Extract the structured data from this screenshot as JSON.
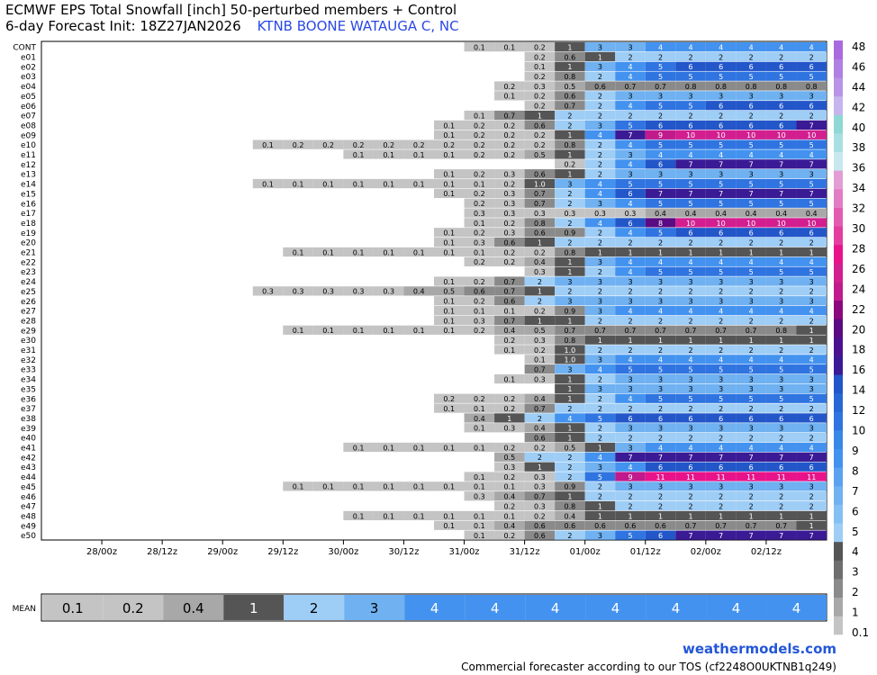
{
  "chart_data": {
    "type": "heatmap",
    "title": "ECMWF EPS Total Snowfall [inch]  50-perturbed members + Control",
    "subtitle": "6-day Forecast Init: 18Z27JAN2026",
    "location": "KTNB BOONE WATAUGA C, NC",
    "x_tick_labels": [
      "28/00z",
      "28/12z",
      "29/00z",
      "29/12z",
      "30/00z",
      "30/12z",
      "31/00z",
      "31/12z",
      "01/00z",
      "01/12z",
      "02/00z",
      "02/12z"
    ],
    "members": [
      "CONT",
      "e01",
      "e02",
      "e03",
      "e04",
      "e05",
      "e06",
      "e07",
      "e08",
      "e09",
      "e10",
      "e11",
      "e12",
      "e13",
      "e14",
      "e15",
      "e16",
      "e17",
      "e18",
      "e19",
      "e20",
      "e21",
      "e22",
      "e23",
      "e24",
      "e25",
      "e26",
      "e27",
      "e28",
      "e29",
      "e30",
      "e31",
      "e32",
      "e33",
      "e34",
      "e35",
      "e36",
      "e37",
      "e38",
      "e39",
      "e40",
      "e41",
      "e42",
      "e43",
      "e44",
      "e45",
      "e46",
      "e47",
      "e48",
      "e49",
      "e50"
    ],
    "members_values": [
      "------------------,------------------,0.1,0.1,0.2,1,3,3,4,4,4,4,4,4",
      "------------------,------------------,----,----,0.2,0.6,1,2,2,2,2,2,2,2",
      ",,,,,,,,,,,,,0.1,1,3,4,5,6,6,6,6,6",
      ",,,,,,,,,,,,,0.2,0.8,2,4,5,5,5,5,5,5",
      ",,,,,,,,,,,,0.2,0.3,0.5,0.6,0.7,0.7,0.8,0.8,0.8,0.8,0.8",
      ",,,,,,,,,,,,0.1,0.2,0.6,2,3,3,3,3,3,3,3",
      ",,,,,,,,,,,,,0.2,0.7,2,4,5,5,6,6,6,6",
      ",,,,,,,,,,,0.1,0.7,1,2,2,2,2,2,2,2,2,2",
      ",,,,,,,,,,0.1,0.2,0.2,0.6,2,3,5,6,6,6,6,6,7",
      ",,,,,,,,,,0.1,0.2,0.2,0.2,1,4,7,9,10,10,10,10,10",
      ",,,,0.1,0.2,0.2,0.2,0.2,0.2,0.2,0.2,0.2,0.2,0.8,2,4,5,5,5,5,5,5",
      ",,,,,,,0.1,0.1,0.1,0.1,0.2,0.2,0.5,1,2,3,4,4,4,4,4,4",
      ",,,,,,,,,,,,,,0.2,2,4,6,7,7,7,7,7",
      ",,,,,,,,,,0.1,0.2,0.3,0.6,1,2,3,3,3,3,3,3,3",
      ",,,,0.1,0.1,0.1,0.1,0.1,0.1,0.1,0.1,0.2,1.0,3,4,5,5,5,5,5,5,5",
      ",,,,,,,,,,,,0.1,0.2,0.3,0.7,2,4,6,7,7,7,7,7,7",
      ",,,,,,,,,,,,0.2,0.3,0.7,2,3,4,5,5,5,5,5,5",
      ",,,,,,,,,,,,0.3,0.3,0.3,0.3,0.3,0.3,0.4,0.4,0.4,0.4,0.4,0.4",
      ",,,,,,,,,,,,0.1,0.2,0.8,2,4,6,8,10,10,10,10,10",
      ",,,,,,,,,,0.1,0.2,0.3,0.6,0.9,2,4,5,6,6,6,6,6",
      ",,,,,,,,,,0.1,0.3,0.6,1,2,2,2,2,2,2,2,2,2",
      ",,,,0.1,0.1,0.1,0.1,0.1,0.1,0.1,0.2,0.2,0.8,1,1,1,1,1,1,1,1",
      ",,,,,,,,,,,0.2,0.2,0.4,1,3,4,4,4,4,4,4,4",
      ",,,,,,,,,,,,,0.3,1,2,4,5,5,5,5,5,5",
      ",,,,,,,,,,0.1,0.2,0.7,2,3,3,3,3,3,3,3,3,3",
      ",,,0.3,0.3,0.3,0.3,0.3,0.4,0.5,0.6,0.7,1,2,2,2,2,2,2,2,2,2",
      ",,,,,,,,,,0.1,0.2,0.6,2,3,3,3,3,3,3,3,3,3",
      ",,,,,,,,,0.1,0.1,0.1,0.2,0.9,3,4,4,4,4,4,4,4",
      ",,,,,,,,,,0.1,0.3,0.7,1,1,2,2,2,2,2,2,2,2",
      ",,,,0.1,0.1,0.1,0.1,0.1,0.1,0.2,0.4,0.5,0.7,0.7,0.7,0.7,0.7,0.7,0.7,0.8,1",
      ",,,,,,,,,,,0.2,0.3,0.8,1,1,1,1,1,1,1,1",
      ",,,,,,,,,,,0.1,0.2,1.0,2,2,2,2,2,2,2,2",
      ",,,,,,,,,,,,0.1,1.0,3,4,4,4,4,4,4,4",
      ",,,,,,,,,,,,0.7,3,4,5,5,5,5,5,5,5",
      ",,,,,,,,,,,0.1,0.3,1,2,3,3,3,3,3,3,3",
      ",,,,,,,,,,,,,1,3,3,3,3,3,3,3,3",
      ",,,,,,,,0.2,0.2,0.2,0.4,1,2,4,5,5,5,5,5,5",
      ",,,,,,,,0.1,0.1,0.2,0.7,2,2,2,2,2,2,2,2,2",
      ",,,,,,,,,,0.4,1,2,4,5,6,6,6,6,6,6,6",
      ",,,,,,,,,0.1,0.3,0.4,1,2,3,3,3,3,3,3,3",
      ",,,,,,,,,,,0.6,1,2,2,2,2,2,2,2,2",
      ",,,,,0.1,0.1,0.1,0.1,0.1,0.2,0.2,0.5,1,3,4,4,4,4,4,4",
      ",,,,,,,,,,0.5,2,2,4,7,7,7,7,7,7,7",
      ",,,,,,,,,,0.3,1,2,3,4,6,6,6,6,6,6",
      ",,,,,,,,0.1,0.2,0.3,2,5,9,11,11,11,11,11,11",
      ",,0.1,0.1,0.1,0.1,0.1,0.1,0.1,0.1,0.3,0.9,2,3,3,3,3,3,3,3",
      ",,,,,,,,0.3,0.4,0.7,1,2,2,2,2,2,2,2,2",
      ",,,,,,,,,0.2,0.3,0.8,1,2,2,2,2,2,2,2",
      ",,,,0.1,0.1,0.1,0.1,0.1,0.1,0.2,0.4,1,1,1,1,1,1,1,1",
      ",,,,,,,,0.1,0.1,0.4,0.6,0.6,0.6,0.6,0.6,0.7,0.7,0.7,0.7,1",
      ",,,,,,,,0.1,0.2,0.6,2,3,5,6,7,7,7,7,7"
    ],
    "mean_values": [
      "0.1",
      "0.2",
      "0.4",
      "1",
      "2",
      "3",
      "4",
      "4",
      "4",
      "4",
      "4",
      "4",
      "4"
    ],
    "mean_label": "MEAN",
    "colorbar_labels": [
      "0.1",
      "1",
      "2",
      "3",
      "4",
      "5",
      "6",
      "7",
      "8",
      "9",
      "10",
      "12",
      "14",
      "16",
      "18",
      "20",
      "22",
      "24",
      "26",
      "28",
      "30",
      "32",
      "34",
      "36",
      "38",
      "40",
      "42",
      "44",
      "46",
      "48"
    ]
  },
  "header": {
    "title_line1": "ECMWF EPS Total Snowfall [inch]  50-perturbed members + Control",
    "title_line2": "6-day Forecast Init: 18Z27JAN2026",
    "location": "KTNB BOONE WATAUGA C, NC"
  },
  "footer": {
    "brand": "weathermodels.com",
    "tos": "Commercial forecaster according to our TOS (cf2248O0UKTNB1q249)"
  },
  "colors": {
    "light_gray": "#c4c4c4",
    "mid_gray": "#9b9b9b",
    "gray": "#848484",
    "dark_gray": "#555555",
    "sky": "#9ecdf6",
    "light_blue": "#6fb1f1",
    "blue": "#4392ef",
    "med_blue": "#2f74e0",
    "deep_blue": "#2256c9",
    "indigo": "#3a1a95",
    "purple": "#5a0a82",
    "violet": "#8a097e",
    "magenta": "#d21e8f",
    "pink": "#e8138a",
    "location_text": "#2a48e6"
  }
}
